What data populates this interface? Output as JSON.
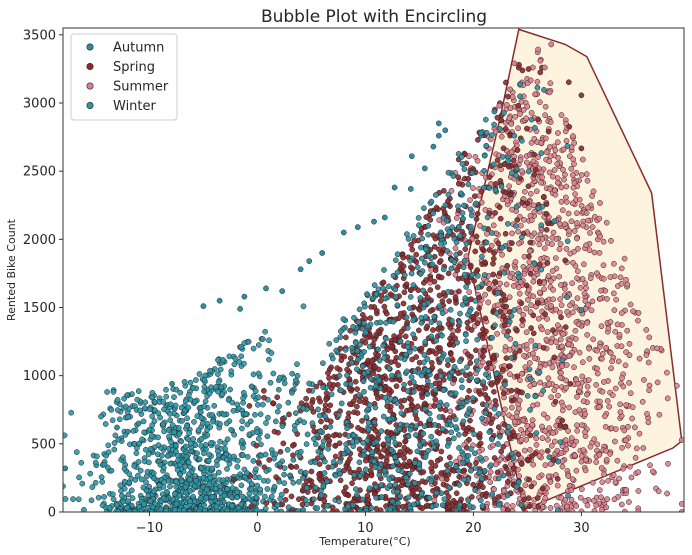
{
  "chart_data": {
    "type": "scatter",
    "title": "Bubble Plot with Encircling",
    "xlabel": "Temperature(°C)",
    "ylabel": "Rented Bike Count",
    "xlim": [
      -18,
      39.5
    ],
    "ylim": [
      0,
      3550
    ],
    "xticks": [
      -10,
      0,
      10,
      20,
      30
    ],
    "yticks": [
      0,
      500,
      1000,
      1500,
      2000,
      2500,
      3000,
      3500
    ],
    "grid": false,
    "legend_position": "top-left",
    "series": [
      {
        "name": "Autumn",
        "color": "#2f8fa0",
        "x_range": [
          -4,
          30
        ],
        "y_max_at": [
          [
            -4,
            400
          ],
          [
            10,
            1600
          ],
          [
            20,
            2800
          ],
          [
            26,
            3300
          ]
        ]
      },
      {
        "name": "Spring",
        "color": "#8b2a2e",
        "x_range": [
          -3,
          30
        ],
        "y_max_at": [
          [
            5,
            900
          ],
          [
            15,
            2100
          ],
          [
            24,
            3300
          ]
        ]
      },
      {
        "name": "Summer",
        "color": "#e07f8d",
        "x_range": [
          16,
          39.3
        ],
        "y_max_at": [
          [
            18,
            2500
          ],
          [
            26,
            3400
          ],
          [
            38,
            1100
          ]
        ]
      },
      {
        "name": "Winter",
        "color": "#2c97a7",
        "x_range": [
          -18,
          10
        ],
        "y_max_at": [
          [
            -8,
            900
          ],
          [
            0,
            1300
          ],
          [
            5,
            1600
          ]
        ]
      }
    ],
    "encircled_region": {
      "series": "Summer",
      "fill": "#fdf3df",
      "edge": "#8b2a2e",
      "hull": [
        [
          24.2,
          3540
        ],
        [
          28.5,
          3430
        ],
        [
          30.5,
          3340
        ],
        [
          36.5,
          2340
        ],
        [
          39.3,
          520
        ],
        [
          38.5,
          470
        ],
        [
          26,
          60
        ],
        [
          24.7,
          20
        ],
        [
          19.5,
          1870
        ],
        [
          22.5,
          2900
        ],
        [
          24.2,
          3540
        ]
      ]
    },
    "highlight_points": [
      [
        -17.8,
        320
      ],
      [
        -13,
        620
      ],
      [
        -12,
        590
      ],
      [
        -11,
        650
      ],
      [
        -7.9,
        940
      ],
      [
        -5,
        1510
      ],
      [
        -3.5,
        1550
      ],
      [
        -1.6,
        1490
      ],
      [
        -1.2,
        1580
      ],
      [
        0.8,
        1640
      ],
      [
        2.3,
        1620
      ],
      [
        4,
        1780
      ],
      [
        4.8,
        1840
      ],
      [
        6,
        1900
      ],
      [
        8,
        2050
      ],
      [
        9.3,
        2090
      ],
      [
        10.8,
        2130
      ],
      [
        11.8,
        2160
      ],
      [
        12.7,
        2380
      ],
      [
        14.2,
        2370
      ],
      [
        14.3,
        2610
      ],
      [
        15.5,
        2520
      ],
      [
        16.3,
        2680
      ],
      [
        16.8,
        2760
      ],
      [
        16.8,
        2850
      ],
      [
        17.4,
        2800
      ],
      [
        23.8,
        3290
      ],
      [
        26.2,
        3310
      ],
      [
        26.6,
        3260
      ],
      [
        27.2,
        3430
      ],
      [
        22.4,
        2980
      ],
      [
        23.4,
        3100
      ]
    ]
  }
}
